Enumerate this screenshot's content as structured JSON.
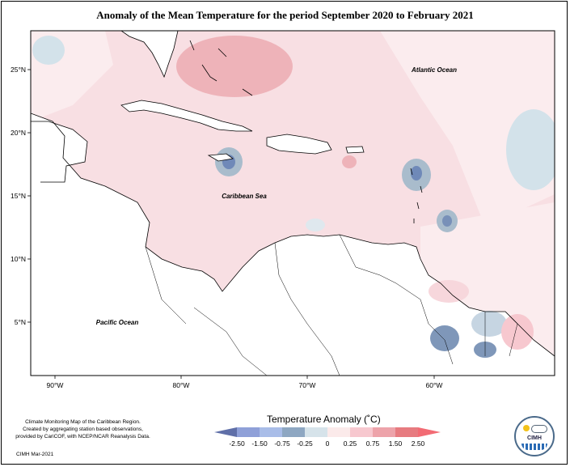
{
  "title": "Anomaly of the Mean Temperature for the period September 2020 to February 2021",
  "map": {
    "lat_ticks": [
      "25°N",
      "20°N",
      "15°N",
      "10°N",
      "5°N"
    ],
    "lon_ticks": [
      "90°W",
      "80°W",
      "70°W",
      "60°W"
    ],
    "labels": {
      "atlantic": "Atlantic Ocean",
      "caribbean": "Caribbean Sea",
      "pacific": "Pacific Ocean"
    }
  },
  "legend": {
    "title": "Temperature Anomaly (˚C)",
    "ticks": [
      "-2.50",
      "-1.50",
      "-0.75",
      "-0.25",
      "0",
      "0.25",
      "0.75",
      "1.50",
      "2.50"
    ],
    "colors": [
      "#5f6fa8",
      "#8fa0d8",
      "#a9bde8",
      "#8ea7c2",
      "#d6e3ea",
      "#fbeaea",
      "#f7c8cf",
      "#eda3aa",
      "#e77b80",
      "#f26b74"
    ]
  },
  "footer": {
    "note_line1": "Climate Monitoring Map of the Caribbean Region.",
    "note_line2": "Created by aggregating station based observations,",
    "note_line3": "provided by CariCOF, with NCEP/NCAR Reanalysis Data.",
    "credit": "CIMH Mar-2021"
  },
  "logo": {
    "text": "CIMH"
  }
}
